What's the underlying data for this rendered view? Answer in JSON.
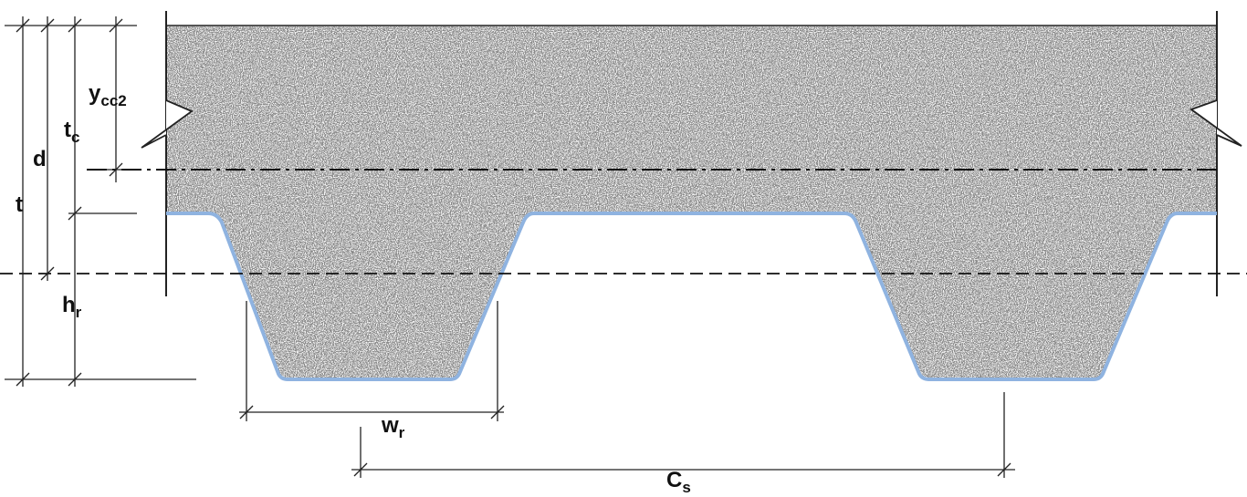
{
  "labels": {
    "ycc2": {
      "main": "y",
      "sub": "cc2"
    },
    "tc": {
      "main": "t",
      "sub": "c"
    },
    "d": {
      "main": "d"
    },
    "t": {
      "main": "t"
    },
    "hr": {
      "main": "h",
      "sub": "r"
    },
    "wr": {
      "main": "w",
      "sub": "r"
    },
    "cs": {
      "main": "C",
      "sub": "s"
    }
  }
}
